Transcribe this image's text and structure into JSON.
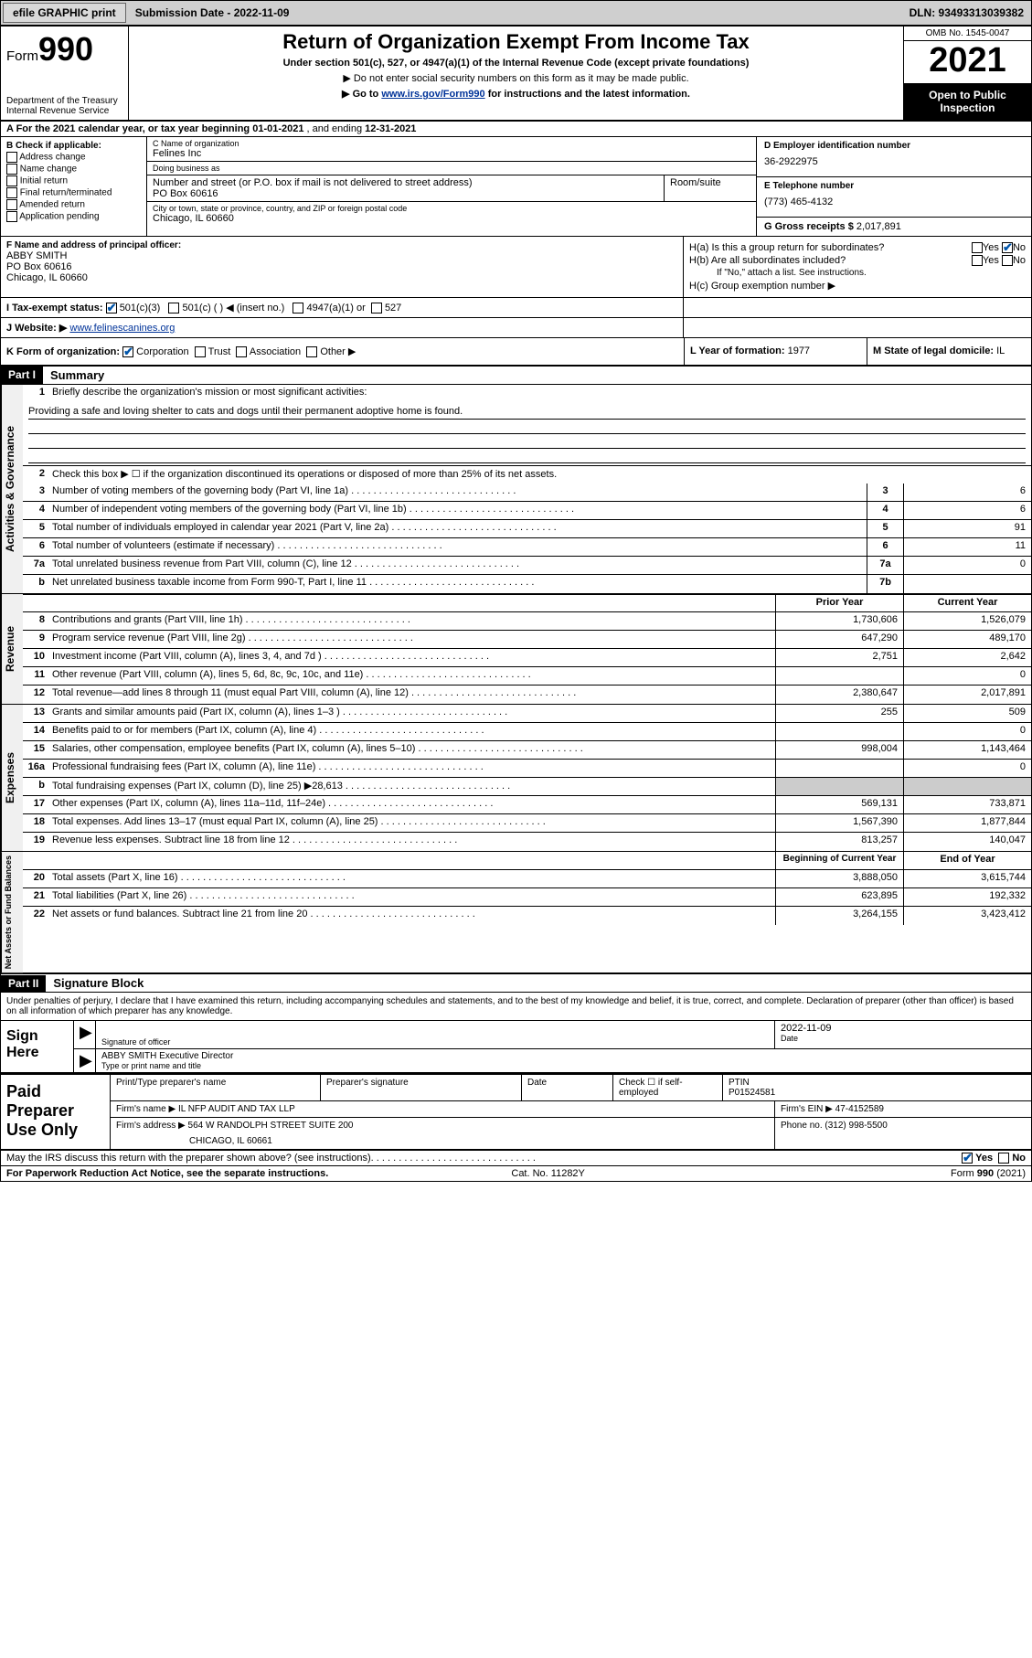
{
  "topbar": {
    "efile": "efile GRAPHIC print",
    "submission": "Submission Date - 2022-11-09",
    "dln": "DLN: 93493313039382"
  },
  "header": {
    "form_prefix": "Form",
    "form_num": "990",
    "title": "Return of Organization Exempt From Income Tax",
    "sub1": "Under section 501(c), 527, or 4947(a)(1) of the Internal Revenue Code (except private foundations)",
    "sub2": "▶ Do not enter social security numbers on this form as it may be made public.",
    "sub3_pre": "▶ Go to ",
    "sub3_link": "www.irs.gov/Form990",
    "sub3_post": " for instructions and the latest information.",
    "dept": "Department of the Treasury\nInternal Revenue Service",
    "omb": "OMB No. 1545-0047",
    "year": "2021",
    "otp": "Open to Public Inspection"
  },
  "rowA": {
    "text_pre": "A For the 2021 calendar year, or tax year beginning ",
    "begin": "01-01-2021",
    "mid": " , and ending ",
    "end": "12-31-2021"
  },
  "boxB": {
    "label": "B Check if applicable:",
    "opts": [
      "Address change",
      "Name change",
      "Initial return",
      "Final return/terminated",
      "Amended return",
      "Application pending"
    ]
  },
  "boxC": {
    "name_label": "C Name of organization",
    "name": "Felines Inc",
    "dba_label": "Doing business as",
    "dba": "",
    "addr_label": "Number and street (or P.O. box if mail is not delivered to street address)",
    "room_label": "Room/suite",
    "addr": "PO Box 60616",
    "city_label": "City or town, state or province, country, and ZIP or foreign postal code",
    "city": "Chicago, IL  60660"
  },
  "boxD": {
    "label": "D Employer identification number",
    "val": "36-2922975"
  },
  "boxE": {
    "label": "E Telephone number",
    "val": "(773) 465-4132"
  },
  "boxG": {
    "label": "G Gross receipts $",
    "val": "2,017,891"
  },
  "boxF": {
    "label": "F Name and address of principal officer:",
    "name": "ABBY SMITH",
    "addr1": "PO Box 60616",
    "addr2": "Chicago, IL  60660"
  },
  "boxH": {
    "ha": "H(a)  Is this a group return for subordinates?",
    "hb": "H(b)  Are all subordinates included?",
    "hb_note": "If \"No,\" attach a list. See instructions.",
    "hc": "H(c)  Group exemption number ▶",
    "yes": "Yes",
    "no": "No"
  },
  "rowI": {
    "label": "I  Tax-exempt status:",
    "o1": "501(c)(3)",
    "o2": "501(c) (  ) ◀ (insert no.)",
    "o3": "4947(a)(1) or",
    "o4": "527"
  },
  "rowJ": {
    "label": "J  Website: ▶",
    "val": "www.felinescanines.org"
  },
  "rowK": {
    "label": "K Form of organization:",
    "o1": "Corporation",
    "o2": "Trust",
    "o3": "Association",
    "o4": "Other ▶"
  },
  "rowL": {
    "label": "L Year of formation:",
    "val": "1977"
  },
  "rowM": {
    "label": "M State of legal domicile:",
    "val": "IL"
  },
  "part1": {
    "hdr": "Part I",
    "title": "Summary",
    "l1_label": "Briefly describe the organization's mission or most significant activities:",
    "l1_text": "Providing a safe and loving shelter to cats and dogs until their permanent adoptive home is found.",
    "l2": "Check this box ▶ ☐  if the organization discontinued its operations or disposed of more than 25% of its net assets.",
    "lines_gov": [
      {
        "n": "3",
        "t": "Number of voting members of the governing body (Part VI, line 1a)",
        "b": "3",
        "v": "6"
      },
      {
        "n": "4",
        "t": "Number of independent voting members of the governing body (Part VI, line 1b)",
        "b": "4",
        "v": "6"
      },
      {
        "n": "5",
        "t": "Total number of individuals employed in calendar year 2021 (Part V, line 2a)",
        "b": "5",
        "v": "91"
      },
      {
        "n": "6",
        "t": "Total number of volunteers (estimate if necessary)",
        "b": "6",
        "v": "11"
      },
      {
        "n": "7a",
        "t": "Total unrelated business revenue from Part VIII, column (C), line 12",
        "b": "7a",
        "v": "0"
      },
      {
        "n": "b",
        "t": "Net unrelated business taxable income from Form 990-T, Part I, line 11",
        "b": "7b",
        "v": ""
      }
    ],
    "col_prior": "Prior Year",
    "col_curr": "Current Year",
    "lines_rev": [
      {
        "n": "8",
        "t": "Contributions and grants (Part VIII, line 1h)",
        "p": "1,730,606",
        "c": "1,526,079"
      },
      {
        "n": "9",
        "t": "Program service revenue (Part VIII, line 2g)",
        "p": "647,290",
        "c": "489,170"
      },
      {
        "n": "10",
        "t": "Investment income (Part VIII, column (A), lines 3, 4, and 7d )",
        "p": "2,751",
        "c": "2,642"
      },
      {
        "n": "11",
        "t": "Other revenue (Part VIII, column (A), lines 5, 6d, 8c, 9c, 10c, and 11e)",
        "p": "",
        "c": "0"
      },
      {
        "n": "12",
        "t": "Total revenue—add lines 8 through 11 (must equal Part VIII, column (A), line 12)",
        "p": "2,380,647",
        "c": "2,017,891"
      }
    ],
    "lines_exp": [
      {
        "n": "13",
        "t": "Grants and similar amounts paid (Part IX, column (A), lines 1–3 )",
        "p": "255",
        "c": "509"
      },
      {
        "n": "14",
        "t": "Benefits paid to or for members (Part IX, column (A), line 4)",
        "p": "",
        "c": "0"
      },
      {
        "n": "15",
        "t": "Salaries, other compensation, employee benefits (Part IX, column (A), lines 5–10)",
        "p": "998,004",
        "c": "1,143,464"
      },
      {
        "n": "16a",
        "t": "Professional fundraising fees (Part IX, column (A), line 11e)",
        "p": "",
        "c": "0"
      },
      {
        "n": "b",
        "t": "Total fundraising expenses (Part IX, column (D), line 25) ▶28,613",
        "p": "shade",
        "c": "shade"
      },
      {
        "n": "17",
        "t": "Other expenses (Part IX, column (A), lines 11a–11d, 11f–24e)",
        "p": "569,131",
        "c": "733,871"
      },
      {
        "n": "18",
        "t": "Total expenses. Add lines 13–17 (must equal Part IX, column (A), line 25)",
        "p": "1,567,390",
        "c": "1,877,844"
      },
      {
        "n": "19",
        "t": "Revenue less expenses. Subtract line 18 from line 12",
        "p": "813,257",
        "c": "140,047"
      }
    ],
    "col_beg": "Beginning of Current Year",
    "col_end": "End of Year",
    "lines_na": [
      {
        "n": "20",
        "t": "Total assets (Part X, line 16)",
        "p": "3,888,050",
        "c": "3,615,744"
      },
      {
        "n": "21",
        "t": "Total liabilities (Part X, line 26)",
        "p": "623,895",
        "c": "192,332"
      },
      {
        "n": "22",
        "t": "Net assets or fund balances. Subtract line 21 from line 20",
        "p": "3,264,155",
        "c": "3,423,412"
      }
    ],
    "tab_gov": "Activities & Governance",
    "tab_rev": "Revenue",
    "tab_exp": "Expenses",
    "tab_na": "Net Assets or Fund Balances"
  },
  "part2": {
    "hdr": "Part II",
    "title": "Signature Block",
    "decl": "Under penalties of perjury, I declare that I have examined this return, including accompanying schedules and statements, and to the best of my knowledge and belief, it is true, correct, and complete. Declaration of preparer (other than officer) is based on all information of which preparer has any knowledge.",
    "sign_here": "Sign Here",
    "sig_officer": "Signature of officer",
    "sig_date": "Date",
    "sig_date_val": "2022-11-09",
    "sig_name_val": "ABBY SMITH Executive Director",
    "sig_name_lbl": "Type or print name and title",
    "paid": "Paid Preparer Use Only",
    "prep_name_lbl": "Print/Type preparer's name",
    "prep_sig_lbl": "Preparer's signature",
    "prep_date_lbl": "Date",
    "prep_check": "Check ☐ if self-employed",
    "ptin_lbl": "PTIN",
    "ptin": "P01524581",
    "firm_name_lbl": "Firm's name  ▶",
    "firm_name": "IL NFP AUDIT AND TAX LLP",
    "firm_ein_lbl": "Firm's EIN ▶",
    "firm_ein": "47-4152589",
    "firm_addr_lbl": "Firm's address ▶",
    "firm_addr": "564 W RANDOLPH STREET SUITE 200",
    "firm_city": "CHICAGO, IL  60661",
    "phone_lbl": "Phone no.",
    "phone": "(312) 998-5500",
    "discuss": "May the IRS discuss this return with the preparer shown above? (see instructions)",
    "d_yes": "Yes",
    "d_no": "No"
  },
  "footer": {
    "l": "For Paperwork Reduction Act Notice, see the separate instructions.",
    "c": "Cat. No. 11282Y",
    "r": "Form 990 (2021)"
  }
}
